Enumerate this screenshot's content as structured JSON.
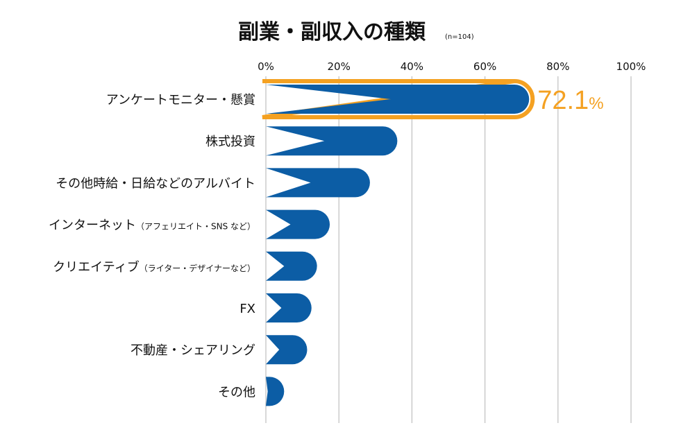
{
  "chart_data": {
    "type": "bar",
    "orientation": "horizontal",
    "title": "副業・副収入の種類",
    "subtitle": "(n=104)",
    "x_ticks": [
      "0%",
      "20%",
      "40%",
      "60%",
      "80%",
      "100%"
    ],
    "xlim": [
      0,
      100
    ],
    "grid": true,
    "categories": [
      {
        "main": "アンケートモニター・懸賞",
        "note": ""
      },
      {
        "main": "株式投資",
        "note": ""
      },
      {
        "main": "その他時給・日給などのアルバイト",
        "note": ""
      },
      {
        "main": "インターネット",
        "note": "（アフェリエイト・SNS など）"
      },
      {
        "main": "クリエイティブ",
        "note": "（ライター・デザイナーなど）"
      },
      {
        "main": "FX",
        "note": ""
      },
      {
        "main": "不動産・シェアリング",
        "note": ""
      },
      {
        "main": "その他",
        "note": ""
      }
    ],
    "values": [
      72.1,
      36,
      28.5,
      17.5,
      14,
      12.5,
      11.3,
      5
    ],
    "highlight": {
      "index": 0,
      "value_number": "72.1",
      "value_unit": "%"
    },
    "colors": {
      "bar": "#0c5da5",
      "highlight": "#f4a122",
      "grid": "#bfbfbf"
    }
  }
}
